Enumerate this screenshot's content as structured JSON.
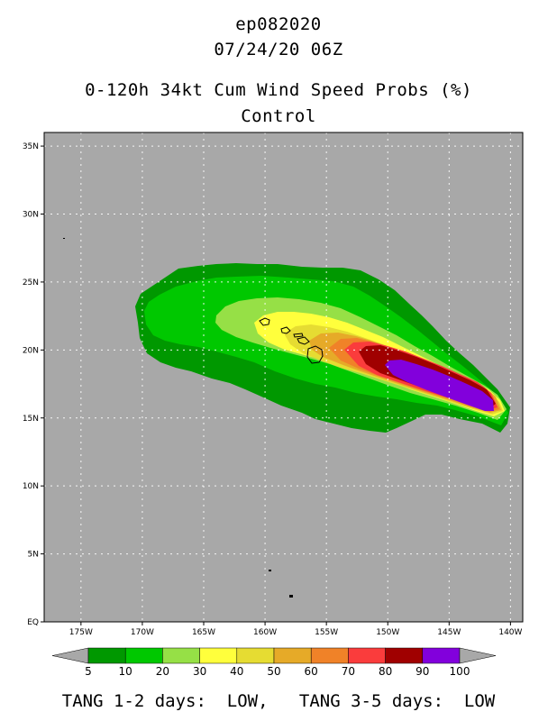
{
  "header": {
    "storm_id": "ep082020",
    "datetime": "07/24/20 06Z",
    "product": "0-120h 34kt Cum Wind Speed Probs (%)",
    "member": "Control"
  },
  "map": {
    "lat_ticks": [
      "35N",
      "30N",
      "25N",
      "20N",
      "15N",
      "10N",
      "5N",
      "EQ"
    ],
    "lon_ticks": [
      "175W",
      "170W",
      "165W",
      "160W",
      "155W",
      "150W",
      "145W",
      "140W"
    ],
    "lat_range": [
      0,
      36
    ],
    "lon_range": [
      -178,
      -139
    ],
    "background_color": "#a8a8a8",
    "contours": [
      {
        "level": 5,
        "color": "#009800"
      },
      {
        "level": 10,
        "color": "#00c800"
      },
      {
        "level": 20,
        "color": "#96e046"
      },
      {
        "level": 30,
        "color": "#ffff3c"
      },
      {
        "level": 40,
        "color": "#e6dc32"
      },
      {
        "level": 50,
        "color": "#e6aa28"
      },
      {
        "level": 60,
        "color": "#f08228"
      },
      {
        "level": 70,
        "color": "#fa3c3c"
      },
      {
        "level": 80,
        "color": "#a00000"
      },
      {
        "level": 90,
        "color": "#8200dc"
      }
    ]
  },
  "colorbar": {
    "labels": [
      "5",
      "10",
      "20",
      "30",
      "40",
      "50",
      "60",
      "70",
      "80",
      "90",
      "100"
    ],
    "colors": [
      "#009800",
      "#00c800",
      "#96e046",
      "#ffff3c",
      "#e6dc32",
      "#e6aa28",
      "#f08228",
      "#fa3c3c",
      "#a00000",
      "#8200dc"
    ]
  },
  "footer": {
    "text": "TANG 1-2 days:  LOW,   TANG 3-5 days:  LOW"
  }
}
